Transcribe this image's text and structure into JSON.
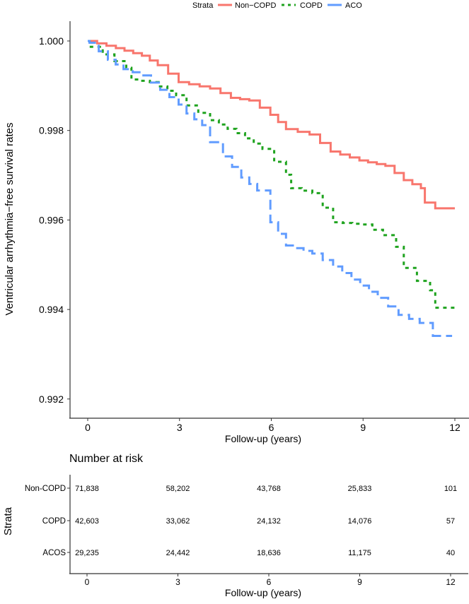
{
  "chart_data": [
    {
      "type": "line",
      "subtype": "kaplan-meier-step",
      "ylabel": "Ventricular arrhythmia−free survival rates",
      "xlabel": "Follow-up (years)",
      "xlim": [
        0,
        12
      ],
      "ylim": [
        0.9919,
        1.0001
      ],
      "xticks": [
        "0",
        "3",
        "6",
        "9",
        "12"
      ],
      "xtick_values": [
        0,
        3,
        6,
        9,
        12
      ],
      "yticks": [
        "0.992",
        "0.994",
        "0.996",
        "0.998",
        "1.000"
      ],
      "ytick_values": [
        0.992,
        0.994,
        0.996,
        0.998,
        1.0
      ],
      "grid": false,
      "legend": {
        "position": "top",
        "title": "Strata",
        "entries": [
          "Non−COPD",
          "COPD",
          "ACO"
        ]
      },
      "series": [
        {
          "name": "Non−COPD",
          "color": "#F8766D",
          "dash": "solid",
          "x": [
            0,
            0.92,
            1.77,
            2.29,
            2.97,
            4.0,
            4.68,
            5.28,
            5.97,
            6.48,
            7.25,
            7.94,
            8.88,
            9.73,
            10.33,
            10.89,
            11.02,
            11.36,
            12
          ],
          "y": [
            1.0,
            0.99984,
            0.99967,
            0.99946,
            0.99908,
            0.99894,
            0.99873,
            0.99867,
            0.99835,
            0.99803,
            0.99791,
            0.99753,
            0.99733,
            0.99721,
            0.99689,
            0.99671,
            0.99639,
            0.99626,
            0.99626
          ]
        },
        {
          "name": "COPD",
          "color": "#1FA31F",
          "dash": "dotted",
          "x": [
            0,
            0.06,
            0.49,
            1.26,
            1.43,
            2.03,
            2.89,
            3.23,
            4.0,
            4.86,
            5.71,
            6.48,
            6.65,
            7.34,
            8.02,
            8.96,
            9.65,
            10.08,
            10.33,
            10.76,
            11.19,
            11.36,
            12
          ],
          "y": [
            1.0,
            0.99987,
            0.9997,
            0.9994,
            0.99914,
            0.99908,
            0.99879,
            0.99856,
            0.99823,
            0.99794,
            0.99759,
            0.99701,
            0.99671,
            0.9966,
            0.99595,
            0.9959,
            0.99566,
            0.9954,
            0.99493,
            0.99464,
            0.99443,
            0.99404,
            0.99404
          ]
        },
        {
          "name": "ACO",
          "color": "#619CFF",
          "dash": "dashed",
          "x": [
            0,
            0.06,
            0.66,
            1.17,
            1.77,
            2.37,
            2.97,
            3.23,
            3.74,
            4.0,
            4.42,
            5.02,
            5.54,
            5.97,
            6.48,
            7.34,
            8.02,
            8.62,
            9.48,
            10.16,
            10.85,
            11.28,
            11.91
          ],
          "y": [
            1.0,
            0.99996,
            0.99958,
            0.99937,
            0.99923,
            0.99891,
            0.99858,
            0.99838,
            0.99812,
            0.99774,
            0.99742,
            0.99695,
            0.99666,
            0.99595,
            0.99543,
            0.99525,
            0.99496,
            0.99467,
            0.99426,
            0.99388,
            0.9937,
            0.99341,
            0.99341
          ]
        }
      ]
    },
    {
      "type": "table",
      "title": "Number at risk",
      "ylabel": "Strata",
      "xlabel": "Follow-up (years)",
      "xticks": [
        "0",
        "3",
        "6",
        "9",
        "12"
      ],
      "xtick_values": [
        0,
        3,
        6,
        9,
        12
      ],
      "rows": [
        {
          "label": "Non-COPD",
          "values": [
            "71,838",
            "58,202",
            "43,768",
            "25,833",
            "101"
          ]
        },
        {
          "label": "COPD",
          "values": [
            "42,603",
            "33,062",
            "24,132",
            "14,076",
            "57"
          ]
        },
        {
          "label": "ACOS",
          "values": [
            "29,235",
            "24,442",
            "18,636",
            "11,175",
            "40"
          ]
        }
      ]
    }
  ]
}
